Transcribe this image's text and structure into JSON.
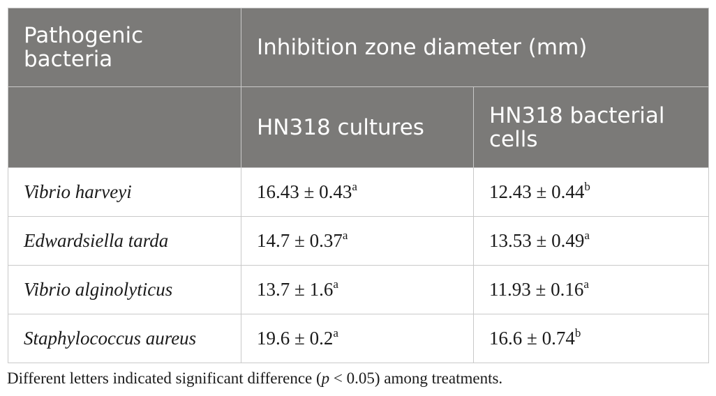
{
  "table": {
    "header": {
      "col1_label": "Pathogenic bacteria",
      "group_label": "Inhibition zone diameter (mm)",
      "sub_col1_label": "HN318 cultures",
      "sub_col2_label": "HN318 bacterial cells"
    },
    "rows": [
      {
        "species": "Vibrio harveyi",
        "cultures": "16.43 ± 0.43",
        "cultures_sup": "a",
        "cells": "12.43 ± 0.44",
        "cells_sup": "b"
      },
      {
        "species": "Edwardsiella tarda",
        "cultures": "14.7 ± 0.37",
        "cultures_sup": "a",
        "cells": "13.53 ± 0.49",
        "cells_sup": "a"
      },
      {
        "species": "Vibrio alginolyticus",
        "cultures": "13.7 ± 1.6",
        "cultures_sup": "a",
        "cells": "11.93 ± 0.16",
        "cells_sup": "a"
      },
      {
        "species": "Staphylococcus aureus",
        "cultures": "19.6 ± 0.2",
        "cultures_sup": "a",
        "cells": "16.6 ± 0.74",
        "cells_sup": "b"
      }
    ]
  },
  "footnote": {
    "text_before": "Different letters indicated significant difference (",
    "p_symbol": "p",
    "text_after": " < 0.05) among treatments."
  }
}
